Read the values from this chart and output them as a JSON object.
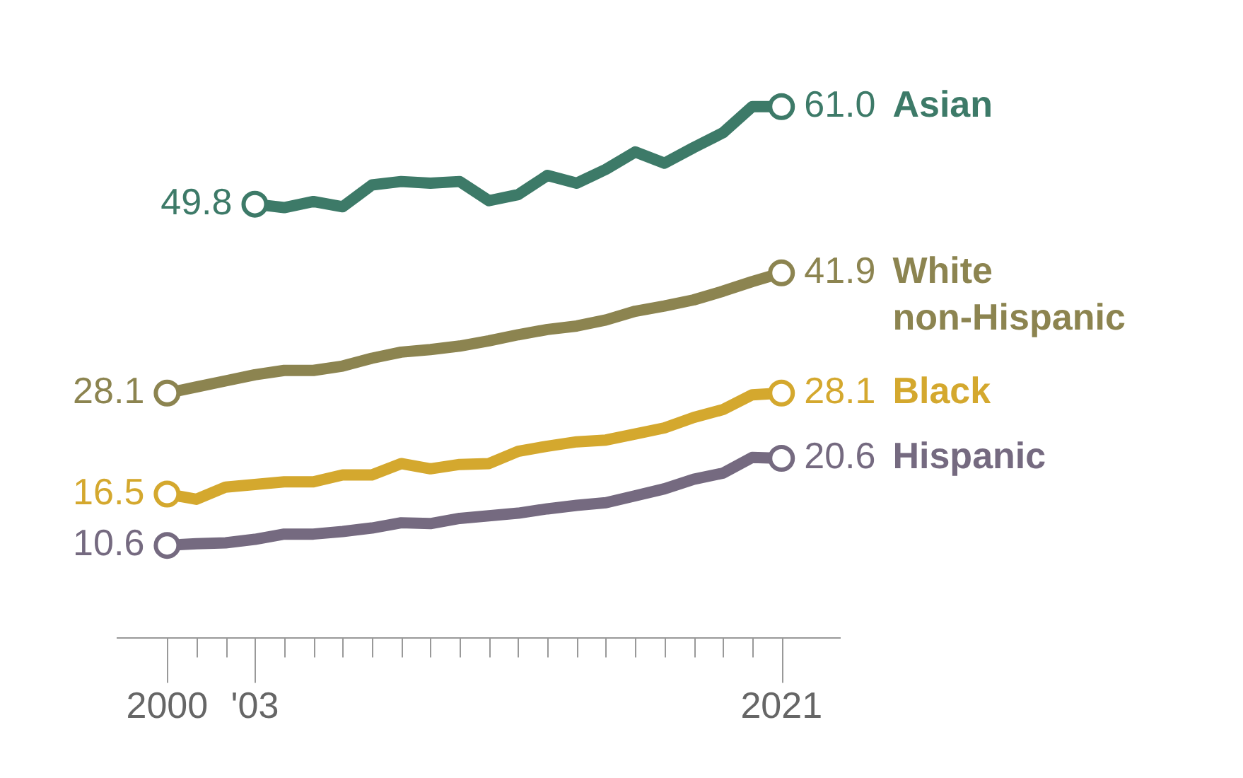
{
  "chart_data": {
    "type": "line",
    "x": [
      2000,
      2001,
      2002,
      2003,
      2004,
      2005,
      2006,
      2007,
      2008,
      2009,
      2010,
      2011,
      2012,
      2013,
      2014,
      2015,
      2016,
      2017,
      2018,
      2019,
      2020,
      2021
    ],
    "xlim": [
      1998.3,
      2023
    ],
    "xticks": [
      2000,
      {
        "value": 2001,
        "label": null
      },
      {
        "value": 2002,
        "label": null
      },
      {
        "value": 2003,
        "label": "'03"
      },
      {
        "value": 2004,
        "label": null
      },
      {
        "value": 2005,
        "label": null
      },
      {
        "value": 2006,
        "label": null
      },
      {
        "value": 2007,
        "label": null
      },
      {
        "value": 2008,
        "label": null
      },
      {
        "value": 2009,
        "label": null
      },
      {
        "value": 2010,
        "label": null
      },
      {
        "value": 2011,
        "label": null
      },
      {
        "value": 2012,
        "label": null
      },
      {
        "value": 2013,
        "label": null
      },
      {
        "value": 2014,
        "label": null
      },
      {
        "value": 2015,
        "label": null
      },
      {
        "value": 2016,
        "label": null
      },
      {
        "value": 2017,
        "label": null
      },
      {
        "value": 2018,
        "label": null
      },
      {
        "value": 2019,
        "label": null
      },
      {
        "value": 2020,
        "label": null
      },
      2021
    ],
    "tick_labels": "x",
    "grid": false,
    "legend": false,
    "line_style": "solid",
    "series": [
      {
        "name": "Asian",
        "color": "#3d7a68",
        "values": [
          null,
          null,
          null,
          49.8,
          49.4,
          50.1,
          49.5,
          52.0,
          52.4,
          52.2,
          52.4,
          50.2,
          50.9,
          53.1,
          52.2,
          53.8,
          55.8,
          54.5,
          56.3,
          58.0,
          61.0,
          61.0
        ],
        "value_labels": [
          null,
          null,
          null,
          "49.8",
          null,
          null,
          null,
          null,
          null,
          null,
          null,
          null,
          null,
          null,
          null,
          null,
          null,
          null,
          null,
          null,
          null,
          "61.0"
        ]
      },
      {
        "name": "White non-Hispanic",
        "color": "#8c8450",
        "values": [
          28.1,
          28.8,
          29.5,
          30.2,
          30.7,
          30.7,
          31.2,
          32.1,
          32.8,
          33.1,
          33.5,
          34.1,
          34.8,
          35.4,
          35.8,
          36.5,
          37.5,
          38.1,
          38.8,
          39.8,
          40.9,
          41.9
        ],
        "value_labels": [
          "28.1",
          null,
          null,
          null,
          null,
          null,
          null,
          null,
          null,
          null,
          null,
          null,
          null,
          null,
          null,
          null,
          null,
          null,
          null,
          null,
          null,
          "41.9"
        ]
      },
      {
        "name": "Black",
        "color": "#d4a82e",
        "values": [
          16.5,
          15.9,
          17.3,
          17.6,
          17.9,
          17.9,
          18.7,
          18.7,
          20.0,
          19.4,
          19.9,
          20.0,
          21.4,
          22.0,
          22.5,
          22.7,
          23.4,
          24.1,
          25.3,
          26.2,
          27.9,
          28.1
        ],
        "value_labels": [
          "16.5",
          null,
          null,
          null,
          null,
          null,
          null,
          null,
          null,
          null,
          null,
          null,
          null,
          null,
          null,
          null,
          null,
          null,
          null,
          null,
          null,
          "28.1"
        ]
      },
      {
        "name": "Hispanic",
        "color": "#756a80",
        "values": [
          10.6,
          10.8,
          10.9,
          11.3,
          11.9,
          11.9,
          12.2,
          12.6,
          13.2,
          13.1,
          13.7,
          14.0,
          14.3,
          14.8,
          15.2,
          15.5,
          16.3,
          17.1,
          18.2,
          18.9,
          20.7,
          20.6
        ],
        "value_labels": [
          "10.6",
          null,
          null,
          null,
          null,
          null,
          null,
          null,
          null,
          null,
          null,
          null,
          null,
          null,
          null,
          null,
          null,
          null,
          null,
          null,
          null,
          "20.6"
        ]
      }
    ]
  }
}
